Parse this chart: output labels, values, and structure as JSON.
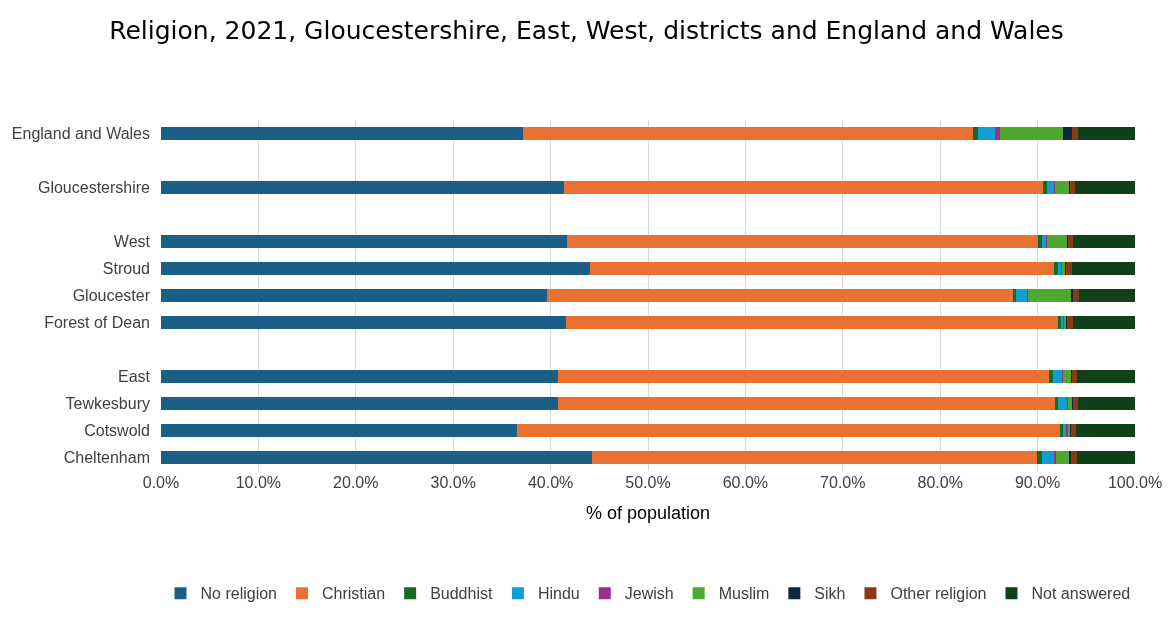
{
  "chart_data": {
    "type": "bar",
    "orientation": "horizontal",
    "stacked": true,
    "title": "Religion, 2021, Gloucestershire, East, West, districts and England and Wales",
    "xlabel": "% of population",
    "categories": [
      "England and Wales",
      null,
      "Gloucestershire",
      null,
      "West",
      "Stroud",
      "Gloucester",
      "Forest of Dean",
      null,
      "East",
      "Tewkesbury",
      "Cotswold",
      "Cheltenham"
    ],
    "series": [
      {
        "name": "No religion",
        "color": "#1b5f87",
        "values": [
          37.2,
          null,
          41.4,
          null,
          41.7,
          44.0,
          39.6,
          41.6,
          null,
          40.8,
          40.8,
          36.6,
          44.3
        ]
      },
      {
        "name": "Christian",
        "color": "#e97132",
        "values": [
          46.2,
          null,
          49.2,
          null,
          48.3,
          47.7,
          47.9,
          50.5,
          null,
          50.4,
          51.0,
          55.7,
          45.6
        ]
      },
      {
        "name": "Buddhist",
        "color": "#196b24",
        "values": [
          0.5,
          null,
          0.4,
          null,
          0.4,
          0.4,
          0.3,
          0.3,
          null,
          0.4,
          0.3,
          0.3,
          0.5
        ]
      },
      {
        "name": "Hindu",
        "color": "#0f9ed5",
        "values": [
          1.7,
          null,
          0.7,
          null,
          0.5,
          0.3,
          1.1,
          0.2,
          null,
          0.9,
          0.9,
          0.3,
          1.3
        ]
      },
      {
        "name": "Jewish",
        "color": "#a02b93",
        "values": [
          0.5,
          null,
          0.1,
          null,
          0.1,
          0.1,
          0.1,
          0.1,
          null,
          0.1,
          0.1,
          0.2,
          0.2
        ]
      },
      {
        "name": "Muslim",
        "color": "#4ea72e",
        "values": [
          6.5,
          null,
          1.4,
          null,
          2.0,
          0.3,
          4.4,
          0.2,
          null,
          0.8,
          0.4,
          0.2,
          1.3
        ]
      },
      {
        "name": "Sikh",
        "color": "#0e2841",
        "values": [
          0.9,
          null,
          0.1,
          null,
          0.1,
          0.1,
          0.2,
          0.1,
          null,
          0.1,
          0.1,
          0.1,
          0.2
        ]
      },
      {
        "name": "Other religion",
        "color": "#8b3a17",
        "values": [
          0.6,
          null,
          0.5,
          null,
          0.5,
          0.6,
          0.6,
          0.6,
          null,
          0.5,
          0.5,
          0.5,
          0.6
        ]
      },
      {
        "name": "Not answered",
        "color": "#10401a",
        "values": [
          6.0,
          null,
          6.2,
          null,
          6.4,
          6.5,
          5.8,
          6.4,
          null,
          6.0,
          5.9,
          6.1,
          6.0
        ]
      }
    ],
    "xlim": [
      0,
      100
    ],
    "xticks": [
      {
        "value": 0,
        "label": "0.0%"
      },
      {
        "value": 10,
        "label": "10.0%"
      },
      {
        "value": 20,
        "label": "20.0%"
      },
      {
        "value": 30,
        "label": "30.0%"
      },
      {
        "value": 40,
        "label": "40.0%"
      },
      {
        "value": 50,
        "label": "50.0%"
      },
      {
        "value": 60,
        "label": "60.0%"
      },
      {
        "value": 70,
        "label": "70.0%"
      },
      {
        "value": 80,
        "label": "80.0%"
      },
      {
        "value": 90,
        "label": "90.0%"
      },
      {
        "value": 100,
        "label": "100.0%"
      }
    ],
    "grid": "x",
    "legend": "bottom"
  }
}
